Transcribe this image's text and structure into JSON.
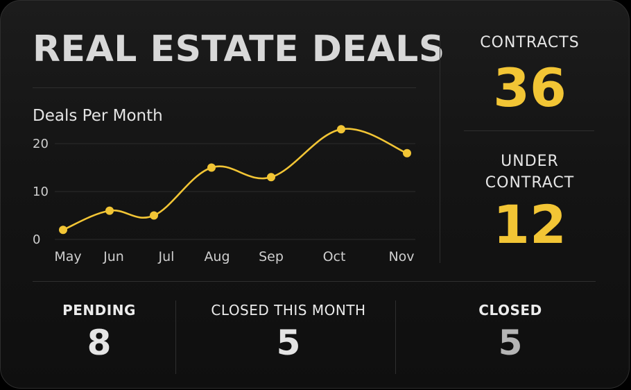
{
  "dashboard": {
    "title": "REAL ESTATE DEALS"
  },
  "chart_data": {
    "type": "line",
    "title": "Deals Per Month",
    "xlabel": "",
    "ylabel": "",
    "categories": [
      "May",
      "Jun",
      "Jul",
      "Aug",
      "Sep",
      "Oct",
      "Nov"
    ],
    "series": [
      {
        "values": [
          2,
          6,
          5,
          15,
          13,
          23,
          18
        ]
      }
    ],
    "yticks": [
      0,
      10,
      20
    ],
    "ylim": [
      0,
      25
    ],
    "grid": true,
    "legend": "none",
    "line_color": "#f2c535"
  },
  "stats": {
    "contracts": {
      "label": "CONTRACTS",
      "value": "36",
      "color": "#f2c535"
    },
    "under_contract": {
      "label_line1": "UNDER",
      "label_line2": "CONTRACT",
      "value": "12",
      "color": "#f2c535"
    },
    "pending": {
      "label": "PENDING",
      "value": "8"
    },
    "closed_this_month": {
      "label": "CLOSED THIS MONTH",
      "value": "5"
    },
    "closed": {
      "label": "CLOSED",
      "value": "5"
    }
  }
}
